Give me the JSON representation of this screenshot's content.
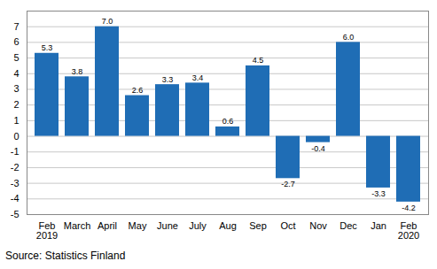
{
  "chart_data": {
    "type": "bar",
    "caption": "Source: Statistics Finland",
    "categories": [
      "Feb\n2019",
      "March",
      "April",
      "May",
      "June",
      "July",
      "Aug",
      "Sep",
      "Oct",
      "Nov",
      "Dec",
      "Jan",
      "Feb\n2020"
    ],
    "values": [
      5.3,
      3.8,
      7.0,
      2.6,
      3.3,
      3.4,
      0.6,
      4.5,
      -2.7,
      -0.4,
      6.0,
      -3.3,
      -4.2
    ],
    "value_labels": [
      "5.3",
      "3.8",
      "7.0",
      "2.6",
      "3.3",
      "3.4",
      "0.6",
      "4.5",
      "-2.7",
      "-0.4",
      "6.0",
      "-3.3",
      "-4.2"
    ],
    "data_labels": true,
    "color": "#1f6db5",
    "ylim": [
      -5,
      8
    ],
    "yticks": [
      -5,
      -4,
      -3,
      -2,
      -1,
      0,
      1,
      2,
      3,
      4,
      5,
      6,
      7
    ],
    "grid": true
  }
}
